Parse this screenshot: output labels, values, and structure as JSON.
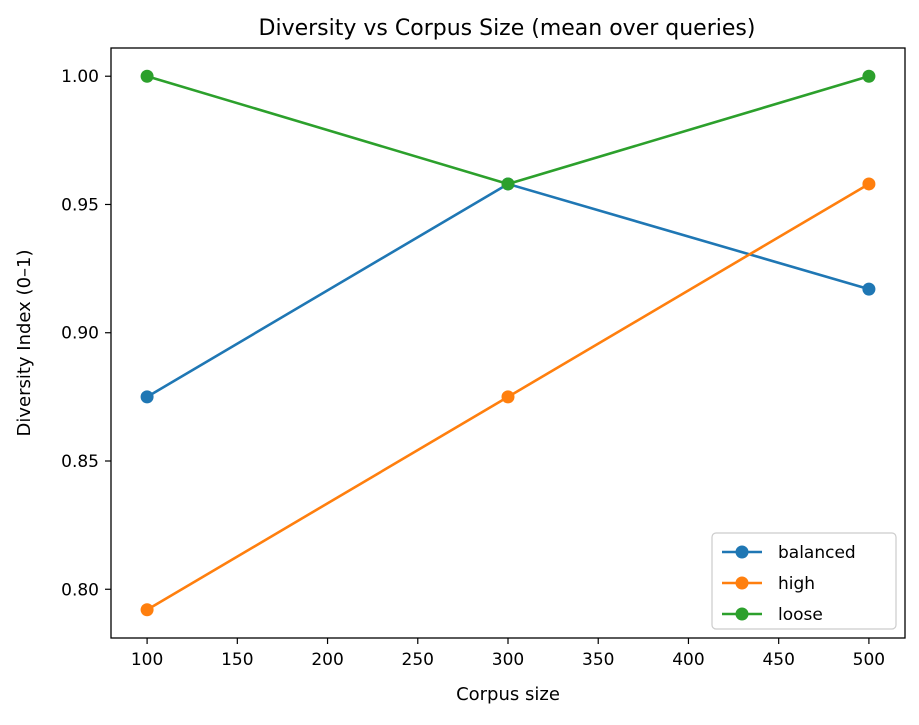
{
  "chart_data": {
    "type": "line",
    "title": "Diversity vs Corpus Size (mean over queries)",
    "xlabel": "Corpus size",
    "ylabel": "Diversity Index (0–1)",
    "x": [
      100,
      300,
      500
    ],
    "xlim": [
      80,
      520
    ],
    "ylim": [
      0.781,
      1.011
    ],
    "xticks": [
      100,
      150,
      200,
      250,
      300,
      350,
      400,
      450,
      500
    ],
    "yticks": [
      0.8,
      0.85,
      0.9,
      0.95,
      1.0
    ],
    "ytick_labels": [
      "0.80",
      "0.85",
      "0.90",
      "0.95",
      "1.00"
    ],
    "grid": false,
    "legend_position": "lower-right",
    "series": [
      {
        "name": "balanced",
        "color": "#1f77b4",
        "marker": "circle",
        "values": [
          0.875,
          0.958,
          0.917
        ]
      },
      {
        "name": "high",
        "color": "#ff7f0e",
        "marker": "circle",
        "values": [
          0.792,
          0.875,
          0.958
        ]
      },
      {
        "name": "loose",
        "color": "#2ca02c",
        "marker": "circle",
        "values": [
          1.0,
          0.958,
          1.0
        ]
      }
    ]
  }
}
